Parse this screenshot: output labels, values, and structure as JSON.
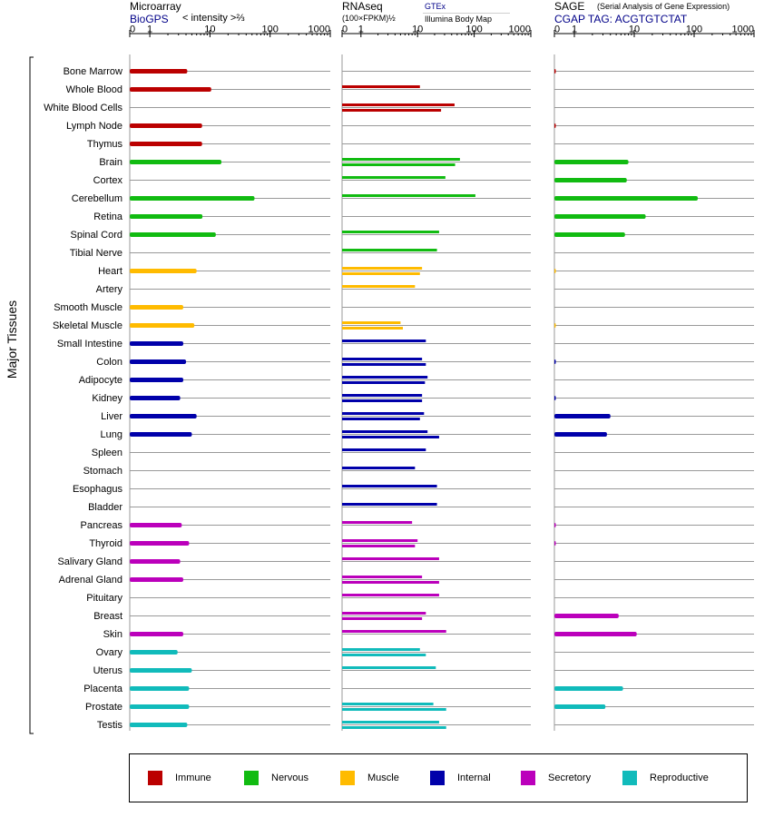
{
  "colors": {
    "Immune": "#bb0000",
    "Nervous": "#11bb11",
    "Muscle": "#ffbb00",
    "Internal": "#0000aa",
    "Secretory": "#bb00bb",
    "Reproductive": "#11bbbb"
  },
  "headers": {
    "microarray": {
      "title": "Microarray",
      "source": "BioGPS",
      "units": "< intensity >⅔"
    },
    "rnaseq": {
      "title": "RNAseq",
      "units": "(100×FPKM)½",
      "source1": "GTEx",
      "source2": "Illumina Body Map"
    },
    "sage": {
      "title": "SAGE",
      "subtitle": "(Serial Analysis of Gene Expression)",
      "tag": "CGAP TAG: ACGTGTCTAT"
    }
  },
  "y_axis_label": "Major Tissues",
  "legend": [
    "Immune",
    "Nervous",
    "Muscle",
    "Internal",
    "Secretory",
    "Reproductive"
  ],
  "chart_data": {
    "type": "bar",
    "x_ticks": [
      "0",
      "1",
      "10",
      "100",
      "1000"
    ],
    "tissues": [
      {
        "name": "Bone Marrow",
        "group": "Immune",
        "microarray": 4.2,
        "rnaseq": [],
        "sage": [
          0.05
        ]
      },
      {
        "name": "Whole Blood",
        "group": "Immune",
        "microarray": 10.5,
        "rnaseq": [
          11
        ],
        "sage": []
      },
      {
        "name": "White Blood Cells",
        "group": "Immune",
        "microarray": null,
        "rnaseq": [
          45,
          26
        ],
        "sage": []
      },
      {
        "name": "Lymph Node",
        "group": "Immune",
        "microarray": 7.4,
        "rnaseq": [],
        "sage": [
          0.05
        ]
      },
      {
        "name": "Thymus",
        "group": "Immune",
        "microarray": 7.4,
        "rnaseq": [],
        "sage": []
      },
      {
        "name": "Brain",
        "group": "Nervous",
        "microarray": 15.5,
        "rnaseq": [
          56,
          46
        ],
        "sage": [
          8
        ]
      },
      {
        "name": "Cortex",
        "group": "Nervous",
        "microarray": null,
        "rnaseq": [
          31
        ],
        "sage": [
          7.5
        ]
      },
      {
        "name": "Cerebellum",
        "group": "Nervous",
        "microarray": 55,
        "rnaseq": [
          105
        ],
        "sage": [
          115
        ]
      },
      {
        "name": "Retina",
        "group": "Nervous",
        "microarray": 7.5,
        "rnaseq": [],
        "sage": [
          15.5
        ]
      },
      {
        "name": "Spinal Cord",
        "group": "Nervous",
        "microarray": 12.5,
        "rnaseq": [
          24
        ],
        "sage": [
          7
        ]
      },
      {
        "name": "Tibial Nerve",
        "group": "Nervous",
        "microarray": null,
        "rnaseq": [
          22
        ],
        "sage": []
      },
      {
        "name": "Heart",
        "group": "Muscle",
        "microarray": 6,
        "rnaseq": [
          12,
          11
        ],
        "sage": [
          0.03
        ]
      },
      {
        "name": "Artery",
        "group": "Muscle",
        "microarray": null,
        "rnaseq": [
          9
        ],
        "sage": []
      },
      {
        "name": "Smooth Muscle",
        "group": "Muscle",
        "microarray": 3.6,
        "rnaseq": [],
        "sage": []
      },
      {
        "name": "Skeletal Muscle",
        "group": "Muscle",
        "microarray": 5.5,
        "rnaseq": [
          5,
          5.5
        ],
        "sage": [
          0.02
        ]
      },
      {
        "name": "Small Intestine",
        "group": "Internal",
        "microarray": 3.6,
        "rnaseq": [
          14
        ],
        "sage": []
      },
      {
        "name": "Colon",
        "group": "Internal",
        "microarray": 4,
        "rnaseq": [
          12,
          14
        ],
        "sage": [
          0.05
        ]
      },
      {
        "name": "Adipocyte",
        "group": "Internal",
        "microarray": 3.6,
        "rnaseq": [
          15,
          13.5
        ],
        "sage": []
      },
      {
        "name": "Kidney",
        "group": "Internal",
        "microarray": 3.2,
        "rnaseq": [
          12,
          12
        ],
        "sage": [
          0.05
        ]
      },
      {
        "name": "Liver",
        "group": "Internal",
        "microarray": 6,
        "rnaseq": [
          13,
          11
        ],
        "sage": [
          4
        ]
      },
      {
        "name": "Lung",
        "group": "Internal",
        "microarray": 5,
        "rnaseq": [
          15,
          24
        ],
        "sage": [
          3.5
        ]
      },
      {
        "name": "Spleen",
        "group": "Internal",
        "microarray": null,
        "rnaseq": [
          14
        ],
        "sage": []
      },
      {
        "name": "Stomach",
        "group": "Internal",
        "microarray": null,
        "rnaseq": [
          9
        ],
        "sage": []
      },
      {
        "name": "Esophagus",
        "group": "Internal",
        "microarray": null,
        "rnaseq": [
          22
        ],
        "sage": []
      },
      {
        "name": "Bladder",
        "group": "Internal",
        "microarray": null,
        "rnaseq": [
          22
        ],
        "sage": []
      },
      {
        "name": "Pancreas",
        "group": "Secretory",
        "microarray": 3.4,
        "rnaseq": [
          8
        ],
        "sage": [
          0.05
        ]
      },
      {
        "name": "Thyroid",
        "group": "Secretory",
        "microarray": 4.5,
        "rnaseq": [
          10,
          9
        ],
        "sage": [
          0.05
        ]
      },
      {
        "name": "Salivary Gland",
        "group": "Secretory",
        "microarray": 3.2,
        "rnaseq": [
          24
        ],
        "sage": []
      },
      {
        "name": "Adrenal Gland",
        "group": "Secretory",
        "microarray": 3.6,
        "rnaseq": [
          12,
          24
        ],
        "sage": []
      },
      {
        "name": "Pituitary",
        "group": "Secretory",
        "microarray": null,
        "rnaseq": [
          24
        ],
        "sage": []
      },
      {
        "name": "Breast",
        "group": "Secretory",
        "microarray": null,
        "rnaseq": [
          14,
          12
        ],
        "sage": [
          5.5
        ]
      },
      {
        "name": "Skin",
        "group": "Secretory",
        "microarray": 3.6,
        "rnaseq": [
          32
        ],
        "sage": [
          11
        ]
      },
      {
        "name": "Ovary",
        "group": "Reproductive",
        "microarray": 2.9,
        "rnaseq": [
          11,
          14
        ],
        "sage": []
      },
      {
        "name": "Uterus",
        "group": "Reproductive",
        "microarray": 5,
        "rnaseq": [
          21
        ],
        "sage": []
      },
      {
        "name": "Placenta",
        "group": "Reproductive",
        "microarray": 4.5,
        "rnaseq": [],
        "sage": [
          6.5
        ]
      },
      {
        "name": "Prostate",
        "group": "Reproductive",
        "microarray": 4.5,
        "rnaseq": [
          19,
          32
        ],
        "sage": [
          3.3
        ]
      },
      {
        "name": "Testis",
        "group": "Reproductive",
        "microarray": 4.2,
        "rnaseq": [
          24,
          32
        ],
        "sage": []
      }
    ]
  }
}
